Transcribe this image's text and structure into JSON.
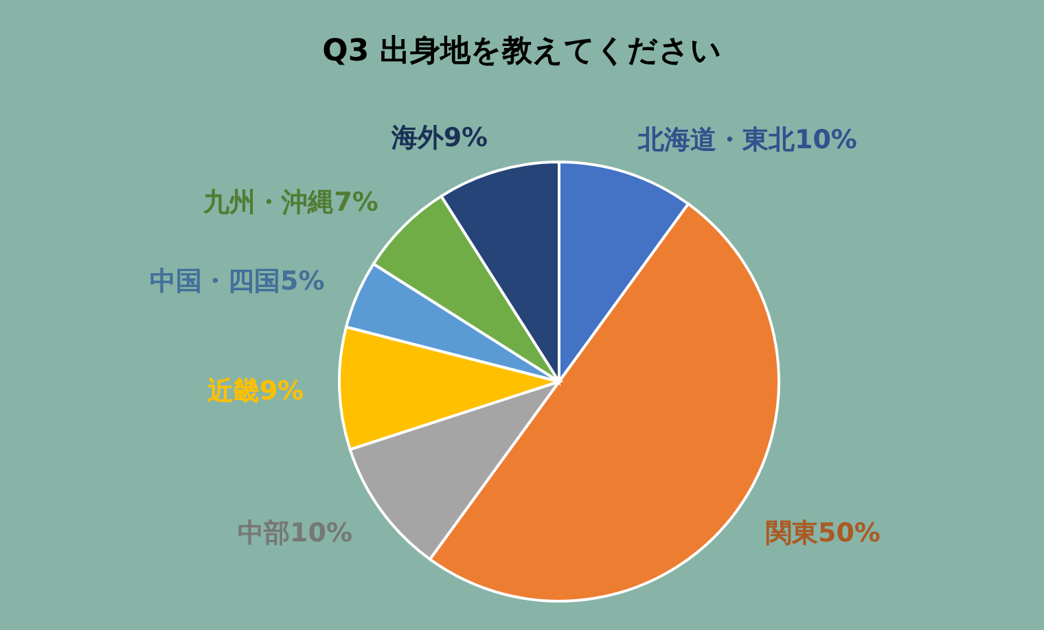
{
  "chart_data": {
    "type": "pie",
    "title": "Q3 出身地を教えてください",
    "categories": [
      "北海道・東北",
      "関東",
      "中部",
      "近畿",
      "中国・四国",
      "九州・沖縄",
      "海外"
    ],
    "values": [
      10,
      50,
      10,
      9,
      5,
      7,
      9
    ],
    "value_labels": [
      "10%",
      "50%",
      "10%",
      "9%",
      "5%",
      "7%",
      "9%"
    ],
    "colors": [
      "#4472c4",
      "#ed7d31",
      "#a5a5a5",
      "#ffc000",
      "#5b9bd5",
      "#70ad47",
      "#264478"
    ],
    "legend": false
  }
}
